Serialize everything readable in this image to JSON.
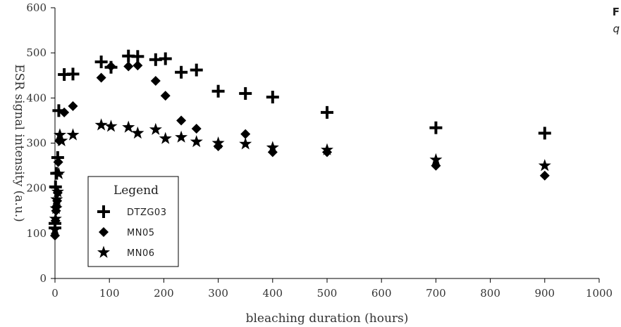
{
  "corner": {
    "line1": "F",
    "line2": "q"
  },
  "chart_data": {
    "type": "scatter",
    "title": "",
    "xlabel": "bleaching duration (hours)",
    "ylabel": "ESR signal intensity (a.u.)",
    "xlim": [
      0,
      1000
    ],
    "ylim": [
      0,
      600
    ],
    "xticks": [
      0,
      100,
      200,
      300,
      400,
      500,
      600,
      700,
      800,
      900,
      1000
    ],
    "yticks": [
      0,
      100,
      200,
      300,
      400,
      500,
      600
    ],
    "grid": false,
    "legend": {
      "title": "Legend",
      "placement": "lower-left"
    },
    "series": [
      {
        "name": "DTZG03",
        "marker": "plus",
        "color": "#000000",
        "points": [
          [
            0,
            112
          ],
          [
            0,
            122
          ],
          [
            1,
            203
          ],
          [
            3,
            233
          ],
          [
            5,
            268
          ],
          [
            7,
            372
          ],
          [
            17,
            452
          ],
          [
            33,
            453
          ],
          [
            85,
            480
          ],
          [
            103,
            468
          ],
          [
            135,
            493
          ],
          [
            152,
            492
          ],
          [
            185,
            485
          ],
          [
            203,
            487
          ],
          [
            232,
            457
          ],
          [
            260,
            462
          ],
          [
            300,
            415
          ],
          [
            350,
            410
          ],
          [
            400,
            402
          ],
          [
            500,
            368
          ],
          [
            700,
            334
          ],
          [
            900,
            322
          ]
        ]
      },
      {
        "name": "MN05",
        "marker": "diamond",
        "color": "#000000",
        "points": [
          [
            0,
            95
          ],
          [
            1,
            128
          ],
          [
            2,
            150
          ],
          [
            3,
            160
          ],
          [
            4,
            172
          ],
          [
            5,
            190
          ],
          [
            6,
            258
          ],
          [
            8,
            305
          ],
          [
            17,
            368
          ],
          [
            33,
            382
          ],
          [
            85,
            445
          ],
          [
            103,
            470
          ],
          [
            135,
            470
          ],
          [
            152,
            472
          ],
          [
            185,
            438
          ],
          [
            203,
            405
          ],
          [
            232,
            350
          ],
          [
            260,
            332
          ],
          [
            300,
            293
          ],
          [
            350,
            320
          ],
          [
            400,
            280
          ],
          [
            500,
            280
          ],
          [
            700,
            250
          ],
          [
            900,
            228
          ]
        ]
      },
      {
        "name": "MN06",
        "marker": "star",
        "color": "#000000",
        "points": [
          [
            0,
            108
          ],
          [
            1,
            132
          ],
          [
            2,
            155
          ],
          [
            3,
            175
          ],
          [
            5,
            192
          ],
          [
            7,
            232
          ],
          [
            9,
            318
          ],
          [
            12,
            305
          ],
          [
            33,
            318
          ],
          [
            85,
            340
          ],
          [
            103,
            337
          ],
          [
            135,
            335
          ],
          [
            152,
            322
          ],
          [
            185,
            330
          ],
          [
            203,
            310
          ],
          [
            232,
            313
          ],
          [
            260,
            303
          ],
          [
            300,
            300
          ],
          [
            350,
            298
          ],
          [
            400,
            290
          ],
          [
            500,
            285
          ],
          [
            700,
            263
          ],
          [
            900,
            250
          ]
        ]
      }
    ]
  }
}
